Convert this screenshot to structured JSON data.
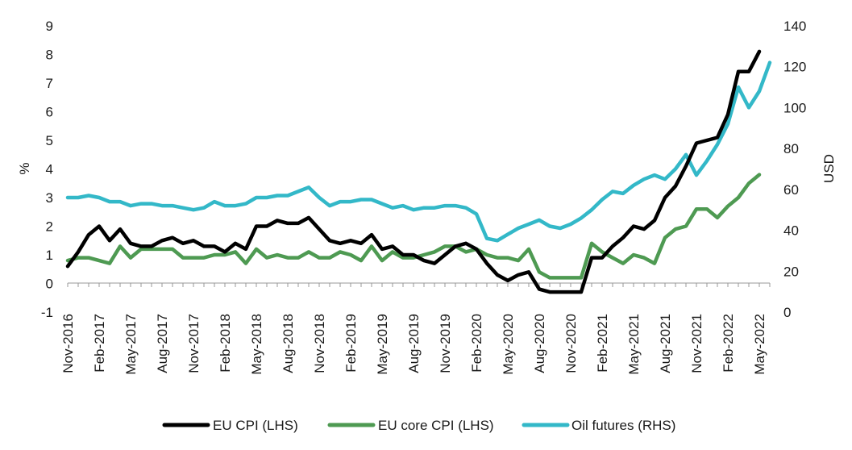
{
  "chart_data": {
    "type": "line",
    "title": "",
    "legend_position": "bottom",
    "grid": false,
    "y_left": {
      "label": "%",
      "range": [
        -1,
        9
      ],
      "ticks": [
        -1,
        0,
        1,
        2,
        3,
        4,
        5,
        6,
        7,
        8,
        9
      ],
      "tick_labels": [
        "-1",
        "0",
        "1",
        "2",
        "3",
        "4",
        "5",
        "6",
        "7",
        "8",
        "9"
      ]
    },
    "y_right": {
      "label": "USD",
      "range": [
        0,
        140
      ],
      "ticks": [
        0,
        20,
        40,
        60,
        80,
        100,
        120,
        140
      ],
      "tick_labels": [
        "0",
        "20",
        "40",
        "60",
        "80",
        "100",
        "120",
        "140"
      ]
    },
    "x_axis": {
      "type": "date",
      "start": "2016-11",
      "end": "2022-06",
      "tick_labels": [
        "Nov-2016",
        "Feb-2017",
        "May-2017",
        "Aug-2017",
        "Nov-2017",
        "Feb-2018",
        "May-2018",
        "Aug-2018",
        "Nov-2018",
        "Feb-2019",
        "May-2019",
        "Aug-2019",
        "Nov-2019",
        "Feb-2020",
        "May-2020",
        "Aug-2020",
        "Nov-2020",
        "Feb-2021",
        "May-2021",
        "Aug-2021",
        "Nov-2021",
        "Feb-2022",
        "May-2022"
      ]
    },
    "series": [
      {
        "name": "EU CPI (LHS)",
        "axis": "left",
        "color": "#000000",
        "points": [
          [
            "2016-11",
            0.6
          ],
          [
            "2016-12",
            1.1
          ],
          [
            "2017-01",
            1.7
          ],
          [
            "2017-02",
            2.0
          ],
          [
            "2017-03",
            1.5
          ],
          [
            "2017-04",
            1.9
          ],
          [
            "2017-05",
            1.4
          ],
          [
            "2017-06",
            1.3
          ],
          [
            "2017-07",
            1.3
          ],
          [
            "2017-08",
            1.5
          ],
          [
            "2017-09",
            1.6
          ],
          [
            "2017-10",
            1.4
          ],
          [
            "2017-11",
            1.5
          ],
          [
            "2017-12",
            1.3
          ],
          [
            "2018-01",
            1.3
          ],
          [
            "2018-02",
            1.1
          ],
          [
            "2018-03",
            1.4
          ],
          [
            "2018-04",
            1.2
          ],
          [
            "2018-05",
            2.0
          ],
          [
            "2018-06",
            2.0
          ],
          [
            "2018-07",
            2.2
          ],
          [
            "2018-08",
            2.1
          ],
          [
            "2018-09",
            2.1
          ],
          [
            "2018-10",
            2.3
          ],
          [
            "2018-11",
            1.9
          ],
          [
            "2018-12",
            1.5
          ],
          [
            "2019-01",
            1.4
          ],
          [
            "2019-02",
            1.5
          ],
          [
            "2019-03",
            1.4
          ],
          [
            "2019-04",
            1.7
          ],
          [
            "2019-05",
            1.2
          ],
          [
            "2019-06",
            1.3
          ],
          [
            "2019-07",
            1.0
          ],
          [
            "2019-08",
            1.0
          ],
          [
            "2019-09",
            0.8
          ],
          [
            "2019-10",
            0.7
          ],
          [
            "2019-11",
            1.0
          ],
          [
            "2019-12",
            1.3
          ],
          [
            "2020-01",
            1.4
          ],
          [
            "2020-02",
            1.2
          ],
          [
            "2020-03",
            0.7
          ],
          [
            "2020-04",
            0.3
          ],
          [
            "2020-05",
            0.1
          ],
          [
            "2020-06",
            0.3
          ],
          [
            "2020-07",
            0.4
          ],
          [
            "2020-08",
            -0.2
          ],
          [
            "2020-09",
            -0.3
          ],
          [
            "2020-10",
            -0.3
          ],
          [
            "2020-11",
            -0.3
          ],
          [
            "2020-12",
            -0.3
          ],
          [
            "2021-01",
            0.9
          ],
          [
            "2021-02",
            0.9
          ],
          [
            "2021-03",
            1.3
          ],
          [
            "2021-04",
            1.6
          ],
          [
            "2021-05",
            2.0
          ],
          [
            "2021-06",
            1.9
          ],
          [
            "2021-07",
            2.2
          ],
          [
            "2021-08",
            3.0
          ],
          [
            "2021-09",
            3.4
          ],
          [
            "2021-10",
            4.1
          ],
          [
            "2021-11",
            4.9
          ],
          [
            "2021-12",
            5.0
          ],
          [
            "2022-01",
            5.1
          ],
          [
            "2022-02",
            5.9
          ],
          [
            "2022-03",
            7.4
          ],
          [
            "2022-04",
            7.4
          ],
          [
            "2022-05",
            8.1
          ]
        ]
      },
      {
        "name": "EU core CPI (LHS)",
        "axis": "left",
        "color": "#4e9a52",
        "points": [
          [
            "2016-11",
            0.8
          ],
          [
            "2016-12",
            0.9
          ],
          [
            "2017-01",
            0.9
          ],
          [
            "2017-02",
            0.8
          ],
          [
            "2017-03",
            0.7
          ],
          [
            "2017-04",
            1.3
          ],
          [
            "2017-05",
            0.9
          ],
          [
            "2017-06",
            1.2
          ],
          [
            "2017-07",
            1.2
          ],
          [
            "2017-08",
            1.2
          ],
          [
            "2017-09",
            1.2
          ],
          [
            "2017-10",
            0.9
          ],
          [
            "2017-11",
            0.9
          ],
          [
            "2017-12",
            0.9
          ],
          [
            "2018-01",
            1.0
          ],
          [
            "2018-02",
            1.0
          ],
          [
            "2018-03",
            1.1
          ],
          [
            "2018-04",
            0.7
          ],
          [
            "2018-05",
            1.2
          ],
          [
            "2018-06",
            0.9
          ],
          [
            "2018-07",
            1.0
          ],
          [
            "2018-08",
            0.9
          ],
          [
            "2018-09",
            0.9
          ],
          [
            "2018-10",
            1.1
          ],
          [
            "2018-11",
            0.9
          ],
          [
            "2018-12",
            0.9
          ],
          [
            "2019-01",
            1.1
          ],
          [
            "2019-02",
            1.0
          ],
          [
            "2019-03",
            0.8
          ],
          [
            "2019-04",
            1.3
          ],
          [
            "2019-05",
            0.8
          ],
          [
            "2019-06",
            1.1
          ],
          [
            "2019-07",
            0.9
          ],
          [
            "2019-08",
            0.9
          ],
          [
            "2019-09",
            1.0
          ],
          [
            "2019-10",
            1.1
          ],
          [
            "2019-11",
            1.3
          ],
          [
            "2019-12",
            1.3
          ],
          [
            "2020-01",
            1.1
          ],
          [
            "2020-02",
            1.2
          ],
          [
            "2020-03",
            1.0
          ],
          [
            "2020-04",
            0.9
          ],
          [
            "2020-05",
            0.9
          ],
          [
            "2020-06",
            0.8
          ],
          [
            "2020-07",
            1.2
          ],
          [
            "2020-08",
            0.4
          ],
          [
            "2020-09",
            0.2
          ],
          [
            "2020-10",
            0.2
          ],
          [
            "2020-11",
            0.2
          ],
          [
            "2020-12",
            0.2
          ],
          [
            "2021-01",
            1.4
          ],
          [
            "2021-02",
            1.1
          ],
          [
            "2021-03",
            0.9
          ],
          [
            "2021-04",
            0.7
          ],
          [
            "2021-05",
            1.0
          ],
          [
            "2021-06",
            0.9
          ],
          [
            "2021-07",
            0.7
          ],
          [
            "2021-08",
            1.6
          ],
          [
            "2021-09",
            1.9
          ],
          [
            "2021-10",
            2.0
          ],
          [
            "2021-11",
            2.6
          ],
          [
            "2021-12",
            2.6
          ],
          [
            "2022-01",
            2.3
          ],
          [
            "2022-02",
            2.7
          ],
          [
            "2022-03",
            3.0
          ],
          [
            "2022-04",
            3.5
          ],
          [
            "2022-05",
            3.8
          ]
        ]
      },
      {
        "name": "Oil futures (RHS)",
        "axis": "right",
        "color": "#33b8c8",
        "points": [
          [
            "2016-11",
            56
          ],
          [
            "2016-12",
            56
          ],
          [
            "2017-01",
            57
          ],
          [
            "2017-02",
            56
          ],
          [
            "2017-03",
            54
          ],
          [
            "2017-04",
            54
          ],
          [
            "2017-05",
            52
          ],
          [
            "2017-06",
            53
          ],
          [
            "2017-07",
            53
          ],
          [
            "2017-08",
            52
          ],
          [
            "2017-09",
            52
          ],
          [
            "2017-10",
            51
          ],
          [
            "2017-11",
            50
          ],
          [
            "2017-12",
            51
          ],
          [
            "2018-01",
            54
          ],
          [
            "2018-02",
            52
          ],
          [
            "2018-03",
            52
          ],
          [
            "2018-04",
            53
          ],
          [
            "2018-05",
            56
          ],
          [
            "2018-06",
            56
          ],
          [
            "2018-07",
            57
          ],
          [
            "2018-08",
            57
          ],
          [
            "2018-09",
            59
          ],
          [
            "2018-10",
            61
          ],
          [
            "2018-11",
            56
          ],
          [
            "2018-12",
            52
          ],
          [
            "2019-01",
            54
          ],
          [
            "2019-02",
            54
          ],
          [
            "2019-03",
            55
          ],
          [
            "2019-04",
            55
          ],
          [
            "2019-05",
            53
          ],
          [
            "2019-06",
            51
          ],
          [
            "2019-07",
            52
          ],
          [
            "2019-08",
            50
          ],
          [
            "2019-09",
            51
          ],
          [
            "2019-10",
            51
          ],
          [
            "2019-11",
            52
          ],
          [
            "2019-12",
            52
          ],
          [
            "2020-01",
            51
          ],
          [
            "2020-02",
            48
          ],
          [
            "2020-03",
            36
          ],
          [
            "2020-04",
            35
          ],
          [
            "2020-05",
            38
          ],
          [
            "2020-06",
            41
          ],
          [
            "2020-07",
            43
          ],
          [
            "2020-08",
            45
          ],
          [
            "2020-09",
            42
          ],
          [
            "2020-10",
            41
          ],
          [
            "2020-11",
            43
          ],
          [
            "2020-12",
            46
          ],
          [
            "2021-01",
            50
          ],
          [
            "2021-02",
            55
          ],
          [
            "2021-03",
            59
          ],
          [
            "2021-04",
            58
          ],
          [
            "2021-05",
            62
          ],
          [
            "2021-06",
            65
          ],
          [
            "2021-07",
            67
          ],
          [
            "2021-08",
            65
          ],
          [
            "2021-09",
            70
          ],
          [
            "2021-10",
            77
          ],
          [
            "2021-11",
            67
          ],
          [
            "2021-12",
            74
          ],
          [
            "2022-01",
            82
          ],
          [
            "2022-02",
            92
          ],
          [
            "2022-03",
            110
          ],
          [
            "2022-04",
            100
          ],
          [
            "2022-05",
            108
          ],
          [
            "2022-06",
            122
          ]
        ]
      }
    ]
  }
}
